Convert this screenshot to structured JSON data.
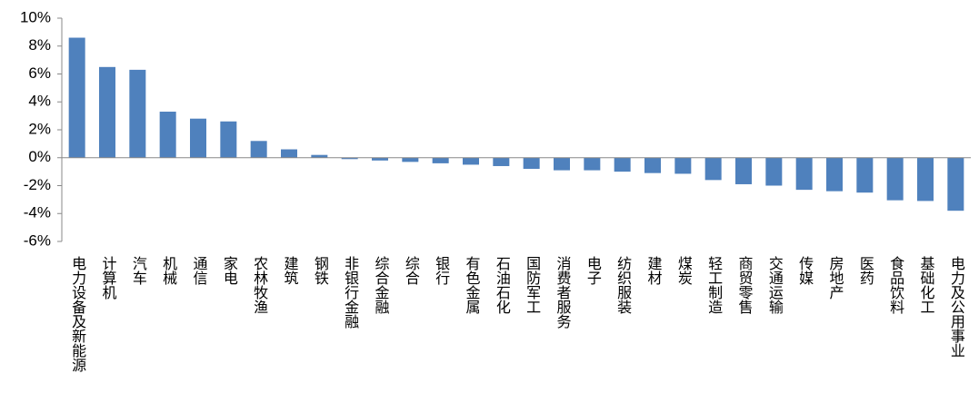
{
  "chart_data": {
    "type": "bar",
    "categories": [
      "电力设备及新能源",
      "计算机",
      "汽车",
      "机械",
      "通信",
      "家电",
      "农林牧渔",
      "建筑",
      "钢铁",
      "非银行金融",
      "综合金融",
      "综合",
      "银行",
      "有色金属",
      "石油石化",
      "国防军工",
      "消费者服务",
      "电子",
      "纺织服装",
      "建材",
      "煤炭",
      "轻工制造",
      "商贸零售",
      "交通运输",
      "传媒",
      "房地产",
      "医药",
      "食品饮料",
      "基础化工",
      "电力及公用事业"
    ],
    "values": [
      8.6,
      6.5,
      6.3,
      3.3,
      2.8,
      2.6,
      1.2,
      0.6,
      0.2,
      -0.1,
      -0.2,
      -0.3,
      -0.4,
      -0.5,
      -0.6,
      -0.8,
      -0.9,
      -0.9,
      -1.0,
      -1.1,
      -1.15,
      -1.6,
      -1.9,
      -2.0,
      -2.3,
      -2.4,
      -2.5,
      -3.05,
      -3.1,
      -3.8
    ],
    "color": "#4f81bd",
    "ylim": [
      -6,
      10
    ],
    "yticks": [
      {
        "value": -6,
        "label": "-6%"
      },
      {
        "value": -4,
        "label": "-4%"
      },
      {
        "value": -2,
        "label": "-2%"
      },
      {
        "value": 0,
        "label": "0%"
      },
      {
        "value": 2,
        "label": "2%"
      },
      {
        "value": 4,
        "label": "4%"
      },
      {
        "value": 6,
        "label": "6%"
      },
      {
        "value": 8,
        "label": "8%"
      },
      {
        "value": 10,
        "label": "10%"
      }
    ],
    "grid": false
  }
}
